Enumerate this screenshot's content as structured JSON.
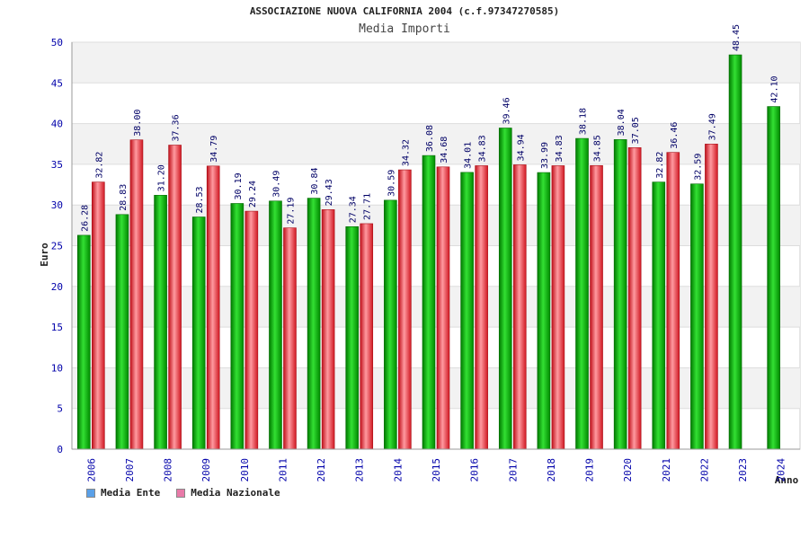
{
  "chart_data": {
    "type": "bar",
    "title": "ASSOCIAZIONE NUOVA CALIFORNIA 2004 (c.f.97347270585)",
    "subtitle": "Media Importi",
    "xlabel": "Anno",
    "ylabel": "Euro",
    "ylim": [
      0,
      50
    ],
    "yticks": [
      0,
      5,
      10,
      15,
      20,
      25,
      30,
      35,
      40,
      45,
      50
    ],
    "categories": [
      "2006",
      "2007",
      "2008",
      "2009",
      "2010",
      "2011",
      "2012",
      "2013",
      "2014",
      "2015",
      "2016",
      "2017",
      "2018",
      "2019",
      "2020",
      "2021",
      "2022",
      "2023",
      "2024"
    ],
    "series": [
      {
        "name": "Media Ente",
        "color": "#00b800",
        "values": [
          26.28,
          28.83,
          31.2,
          28.53,
          30.19,
          30.49,
          30.84,
          27.34,
          30.59,
          36.08,
          34.01,
          39.46,
          33.99,
          38.18,
          38.04,
          32.82,
          32.59,
          48.45,
          42.1
        ]
      },
      {
        "name": "Media Nazionale",
        "color": "#e8202a",
        "values": [
          32.82,
          38.0,
          37.36,
          34.79,
          29.24,
          27.19,
          29.43,
          27.71,
          34.32,
          34.68,
          34.83,
          34.94,
          34.83,
          34.85,
          37.05,
          36.46,
          37.49,
          null,
          null
        ]
      }
    ],
    "legend": [
      {
        "label": "Media Ente",
        "color": "#5aa0e8"
      },
      {
        "label": "Media Nazionale",
        "color": "#e87aa8"
      }
    ]
  }
}
